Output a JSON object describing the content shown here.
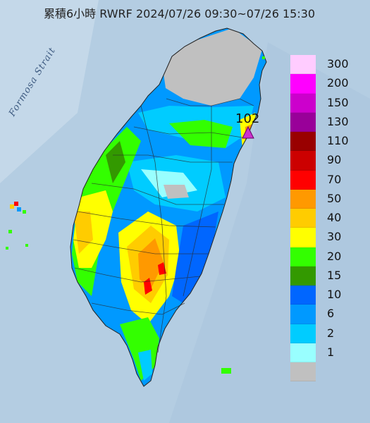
{
  "title": "累積6小時 RWRF 2024/07/26 09:30~07/26 15:30",
  "sea_label": "Formosa Strait",
  "max_marker": {
    "value": "102",
    "color": "#cc33cc",
    "icon": "triangle-marker-icon"
  },
  "legend": {
    "items": [
      {
        "label": "300",
        "color": "#ffccff"
      },
      {
        "label": "200",
        "color": "#ff00ff"
      },
      {
        "label": "150",
        "color": "#cc00cc"
      },
      {
        "label": "130",
        "color": "#990099"
      },
      {
        "label": "110",
        "color": "#990000"
      },
      {
        "label": "90",
        "color": "#cc0000"
      },
      {
        "label": "70",
        "color": "#ff0000"
      },
      {
        "label": "50",
        "color": "#ff9900"
      },
      {
        "label": "40",
        "color": "#ffcc00"
      },
      {
        "label": "30",
        "color": "#ffff00"
      },
      {
        "label": "20",
        "color": "#33ff00"
      },
      {
        "label": "15",
        "color": "#339900"
      },
      {
        "label": "10",
        "color": "#0066ff"
      },
      {
        "label": "6",
        "color": "#0099ff"
      },
      {
        "label": "2",
        "color": "#00ccff"
      },
      {
        "label": "1",
        "color": "#99ffff"
      },
      {
        "label": "",
        "color": "#c0c0c0"
      }
    ]
  },
  "colors": {
    "sea": "#b4cde2",
    "sea_light": "#c9dcec",
    "county_lines": "#333333"
  }
}
